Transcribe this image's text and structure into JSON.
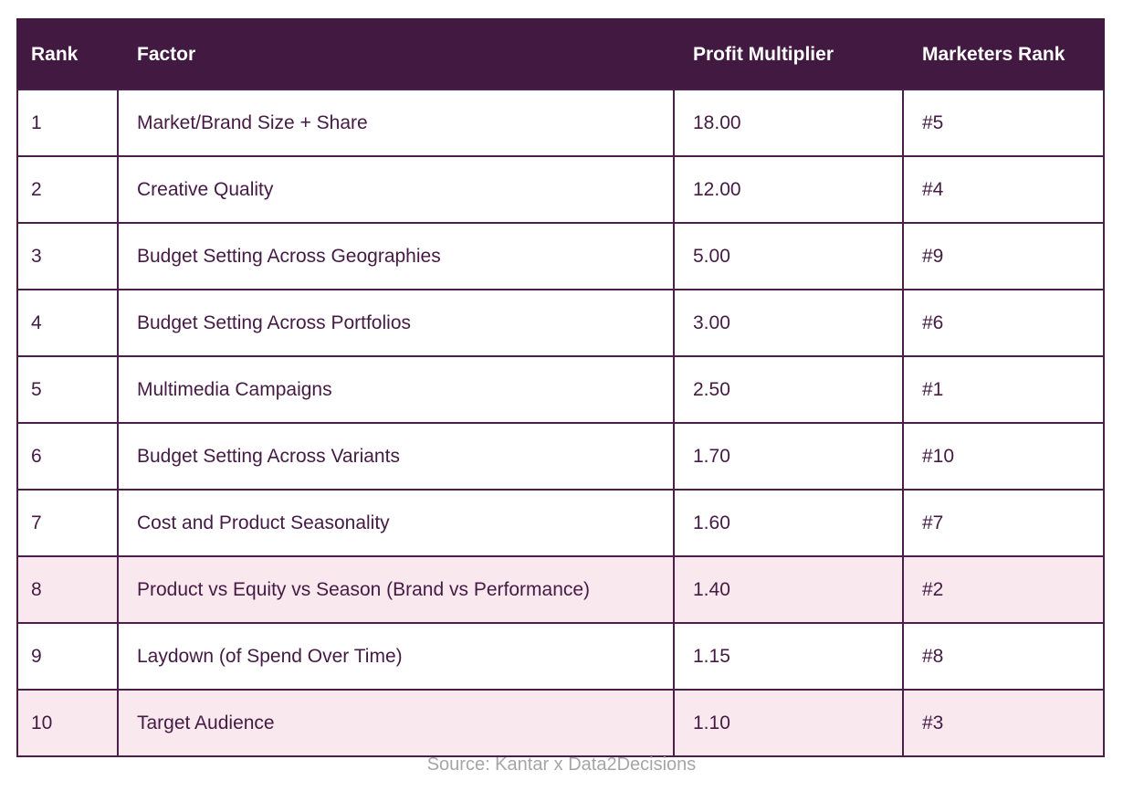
{
  "table": {
    "headers": {
      "rank": "Rank",
      "factor": "Factor",
      "profit_multiplier": "Profit Multiplier",
      "marketers_rank": "Marketers Rank"
    },
    "rows": [
      {
        "rank": "1",
        "factor": "Market/Brand Size + Share",
        "profit_multiplier": "18.00",
        "marketers_rank": "#5",
        "highlighted": false
      },
      {
        "rank": "2",
        "factor": "Creative Quality",
        "profit_multiplier": "12.00",
        "marketers_rank": "#4",
        "highlighted": false
      },
      {
        "rank": "3",
        "factor": "Budget Setting Across Geographies",
        "profit_multiplier": "5.00",
        "marketers_rank": "#9",
        "highlighted": false
      },
      {
        "rank": "4",
        "factor": "Budget Setting Across Portfolios",
        "profit_multiplier": "3.00",
        "marketers_rank": "#6",
        "highlighted": false
      },
      {
        "rank": "5",
        "factor": "Multimedia Campaigns",
        "profit_multiplier": "2.50",
        "marketers_rank": "#1",
        "highlighted": false
      },
      {
        "rank": "6",
        "factor": "Budget Setting Across Variants",
        "profit_multiplier": "1.70",
        "marketers_rank": "#10",
        "highlighted": false
      },
      {
        "rank": "7",
        "factor": "Cost and Product Seasonality",
        "profit_multiplier": "1.60",
        "marketers_rank": "#7",
        "highlighted": false
      },
      {
        "rank": "8",
        "factor": "Product vs Equity vs Season (Brand vs Performance)",
        "profit_multiplier": "1.40",
        "marketers_rank": "#2",
        "highlighted": true
      },
      {
        "rank": "9",
        "factor": "Laydown (of Spend Over Time)",
        "profit_multiplier": "1.15",
        "marketers_rank": "#8",
        "highlighted": false
      },
      {
        "rank": "10",
        "factor": "Target Audience",
        "profit_multiplier": "1.10",
        "marketers_rank": "#3",
        "highlighted": true
      }
    ],
    "highlight_color": "#f9e9ee",
    "header_color": "#421940",
    "border_color": "#4b1f49",
    "body_text_color": "#451a44"
  },
  "footer": {
    "source": "Source: Kantar x Data2Decisions"
  }
}
